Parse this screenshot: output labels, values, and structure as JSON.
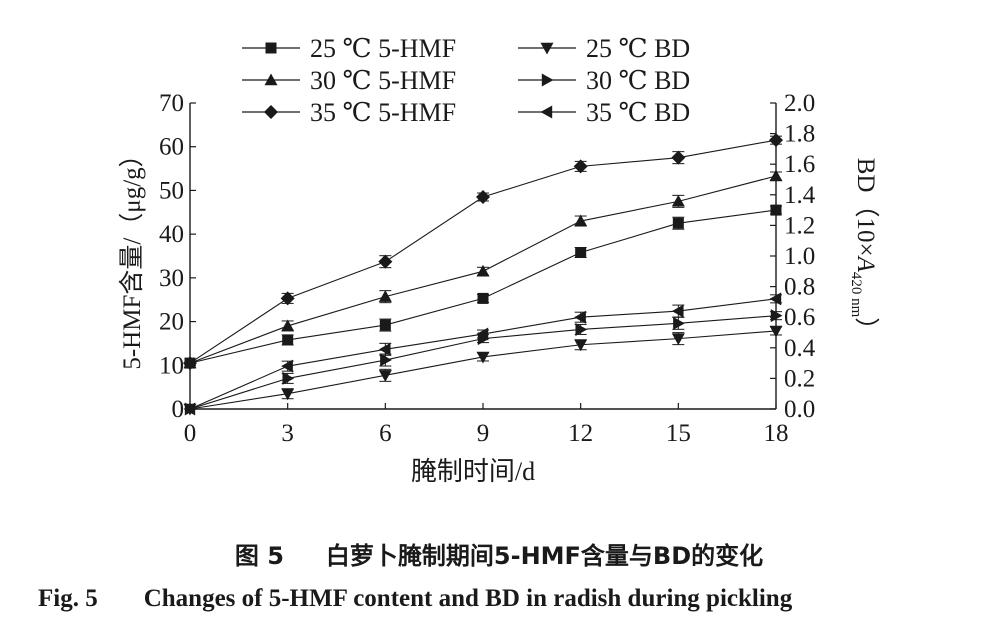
{
  "chart_data": {
    "type": "line",
    "x": [
      0,
      3,
      6,
      9,
      12,
      15,
      18
    ],
    "xlabel": "腌制时间/d",
    "xlim": [
      0,
      18
    ],
    "x_ticks": [
      "0",
      "3",
      "6",
      "9",
      "12",
      "15",
      "18"
    ],
    "ylabel_left": "5-HMF含量/（μg/g）",
    "ylim_left": [
      0,
      70
    ],
    "y_ticks_left": [
      "0",
      "10",
      "20",
      "30",
      "40",
      "50",
      "60",
      "70"
    ],
    "ylabel_right_main": "BD（10×",
    "ylabel_right_italic": "A",
    "ylabel_right_sub": "420 nm",
    "ylabel_right_end": "）",
    "ylim_right": [
      0,
      2.0
    ],
    "y_ticks_right": [
      "0.0",
      "0.2",
      "0.4",
      "0.6",
      "0.8",
      "1.0",
      "1.2",
      "1.4",
      "1.6",
      "1.8",
      "2.0"
    ],
    "grid": false,
    "legend_position": "top",
    "series": [
      {
        "name": "25 ℃  5-HMF",
        "axis": "left",
        "marker": "square",
        "color": "#1a1a1a",
        "values": [
          10.5,
          15.8,
          19.2,
          25.3,
          35.8,
          42.5,
          45.5
        ]
      },
      {
        "name": "30 ℃  5-HMF",
        "axis": "left",
        "marker": "triangle-up",
        "color": "#1a1a1a",
        "values": [
          10.5,
          19.0,
          25.7,
          31.5,
          43.0,
          47.5,
          53.3
        ]
      },
      {
        "name": "35 ℃  5-HMF",
        "axis": "left",
        "marker": "diamond",
        "color": "#1a1a1a",
        "values": [
          10.5,
          25.3,
          33.7,
          48.5,
          55.5,
          57.5,
          61.5
        ]
      },
      {
        "name": "25 ℃  BD",
        "axis": "right",
        "marker": "triangle-down",
        "color": "#1a1a1a",
        "values": [
          0.0,
          0.1,
          0.22,
          0.34,
          0.42,
          0.46,
          0.51
        ]
      },
      {
        "name": "30 ℃  BD",
        "axis": "right",
        "marker": "triangle-right",
        "color": "#1a1a1a",
        "values": [
          0.0,
          0.2,
          0.32,
          0.46,
          0.52,
          0.56,
          0.61
        ]
      },
      {
        "name": "35 ℃  BD",
        "axis": "right",
        "marker": "triangle-left",
        "color": "#1a1a1a",
        "values": [
          0.0,
          0.28,
          0.39,
          0.49,
          0.6,
          0.64,
          0.72
        ]
      }
    ]
  },
  "caption": {
    "cn_label": "图 5",
    "cn_text": "白萝卜腌制期间5-HMF含量与BD的变化",
    "en_label": "Fig. 5",
    "en_text": "Changes of 5-HMF content and BD in radish during pickling"
  }
}
